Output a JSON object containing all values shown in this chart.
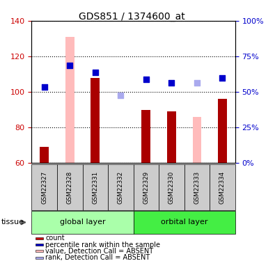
{
  "title": "GDS851 / 1374600_at",
  "samples": [
    "GSM22327",
    "GSM22328",
    "GSM22331",
    "GSM22332",
    "GSM22329",
    "GSM22330",
    "GSM22333",
    "GSM22334"
  ],
  "groups": [
    {
      "name": "global layer",
      "indices": [
        0,
        1,
        2,
        3
      ],
      "color": "#aaffaa"
    },
    {
      "name": "orbital layer",
      "indices": [
        4,
        5,
        6,
        7
      ],
      "color": "#44ee44"
    }
  ],
  "bar_values": [
    69,
    null,
    108,
    null,
    90,
    89,
    null,
    96
  ],
  "bar_absent_values": [
    null,
    131,
    null,
    null,
    null,
    null,
    86,
    null
  ],
  "rank_dots": [
    103,
    115,
    111,
    null,
    107,
    105,
    null,
    108
  ],
  "rank_absent_dots": [
    null,
    null,
    null,
    98,
    null,
    null,
    105,
    null
  ],
  "ylim": [
    60,
    140
  ],
  "yticks": [
    60,
    80,
    100,
    120,
    140
  ],
  "right_labels": [
    "0%",
    "25%",
    "50%",
    "75%",
    "100%"
  ],
  "bar_color": "#aa0000",
  "bar_absent_color": "#ffbbbb",
  "rank_dot_color": "#0000cc",
  "rank_absent_dot_color": "#aaaaee",
  "legend_items": [
    {
      "label": "count",
      "color": "#cc0000"
    },
    {
      "label": "percentile rank within the sample",
      "color": "#0000cc"
    },
    {
      "label": "value, Detection Call = ABSENT",
      "color": "#ffbbbb"
    },
    {
      "label": "rank, Detection Call = ABSENT",
      "color": "#aaaaee"
    }
  ],
  "tissue_label": "tissue",
  "bar_width": 0.35,
  "dot_size": 40,
  "sample_box_color": "#cccccc",
  "grid_color": "#000000",
  "left_tick_color": "#cc0000",
  "right_tick_color": "#0000cc"
}
